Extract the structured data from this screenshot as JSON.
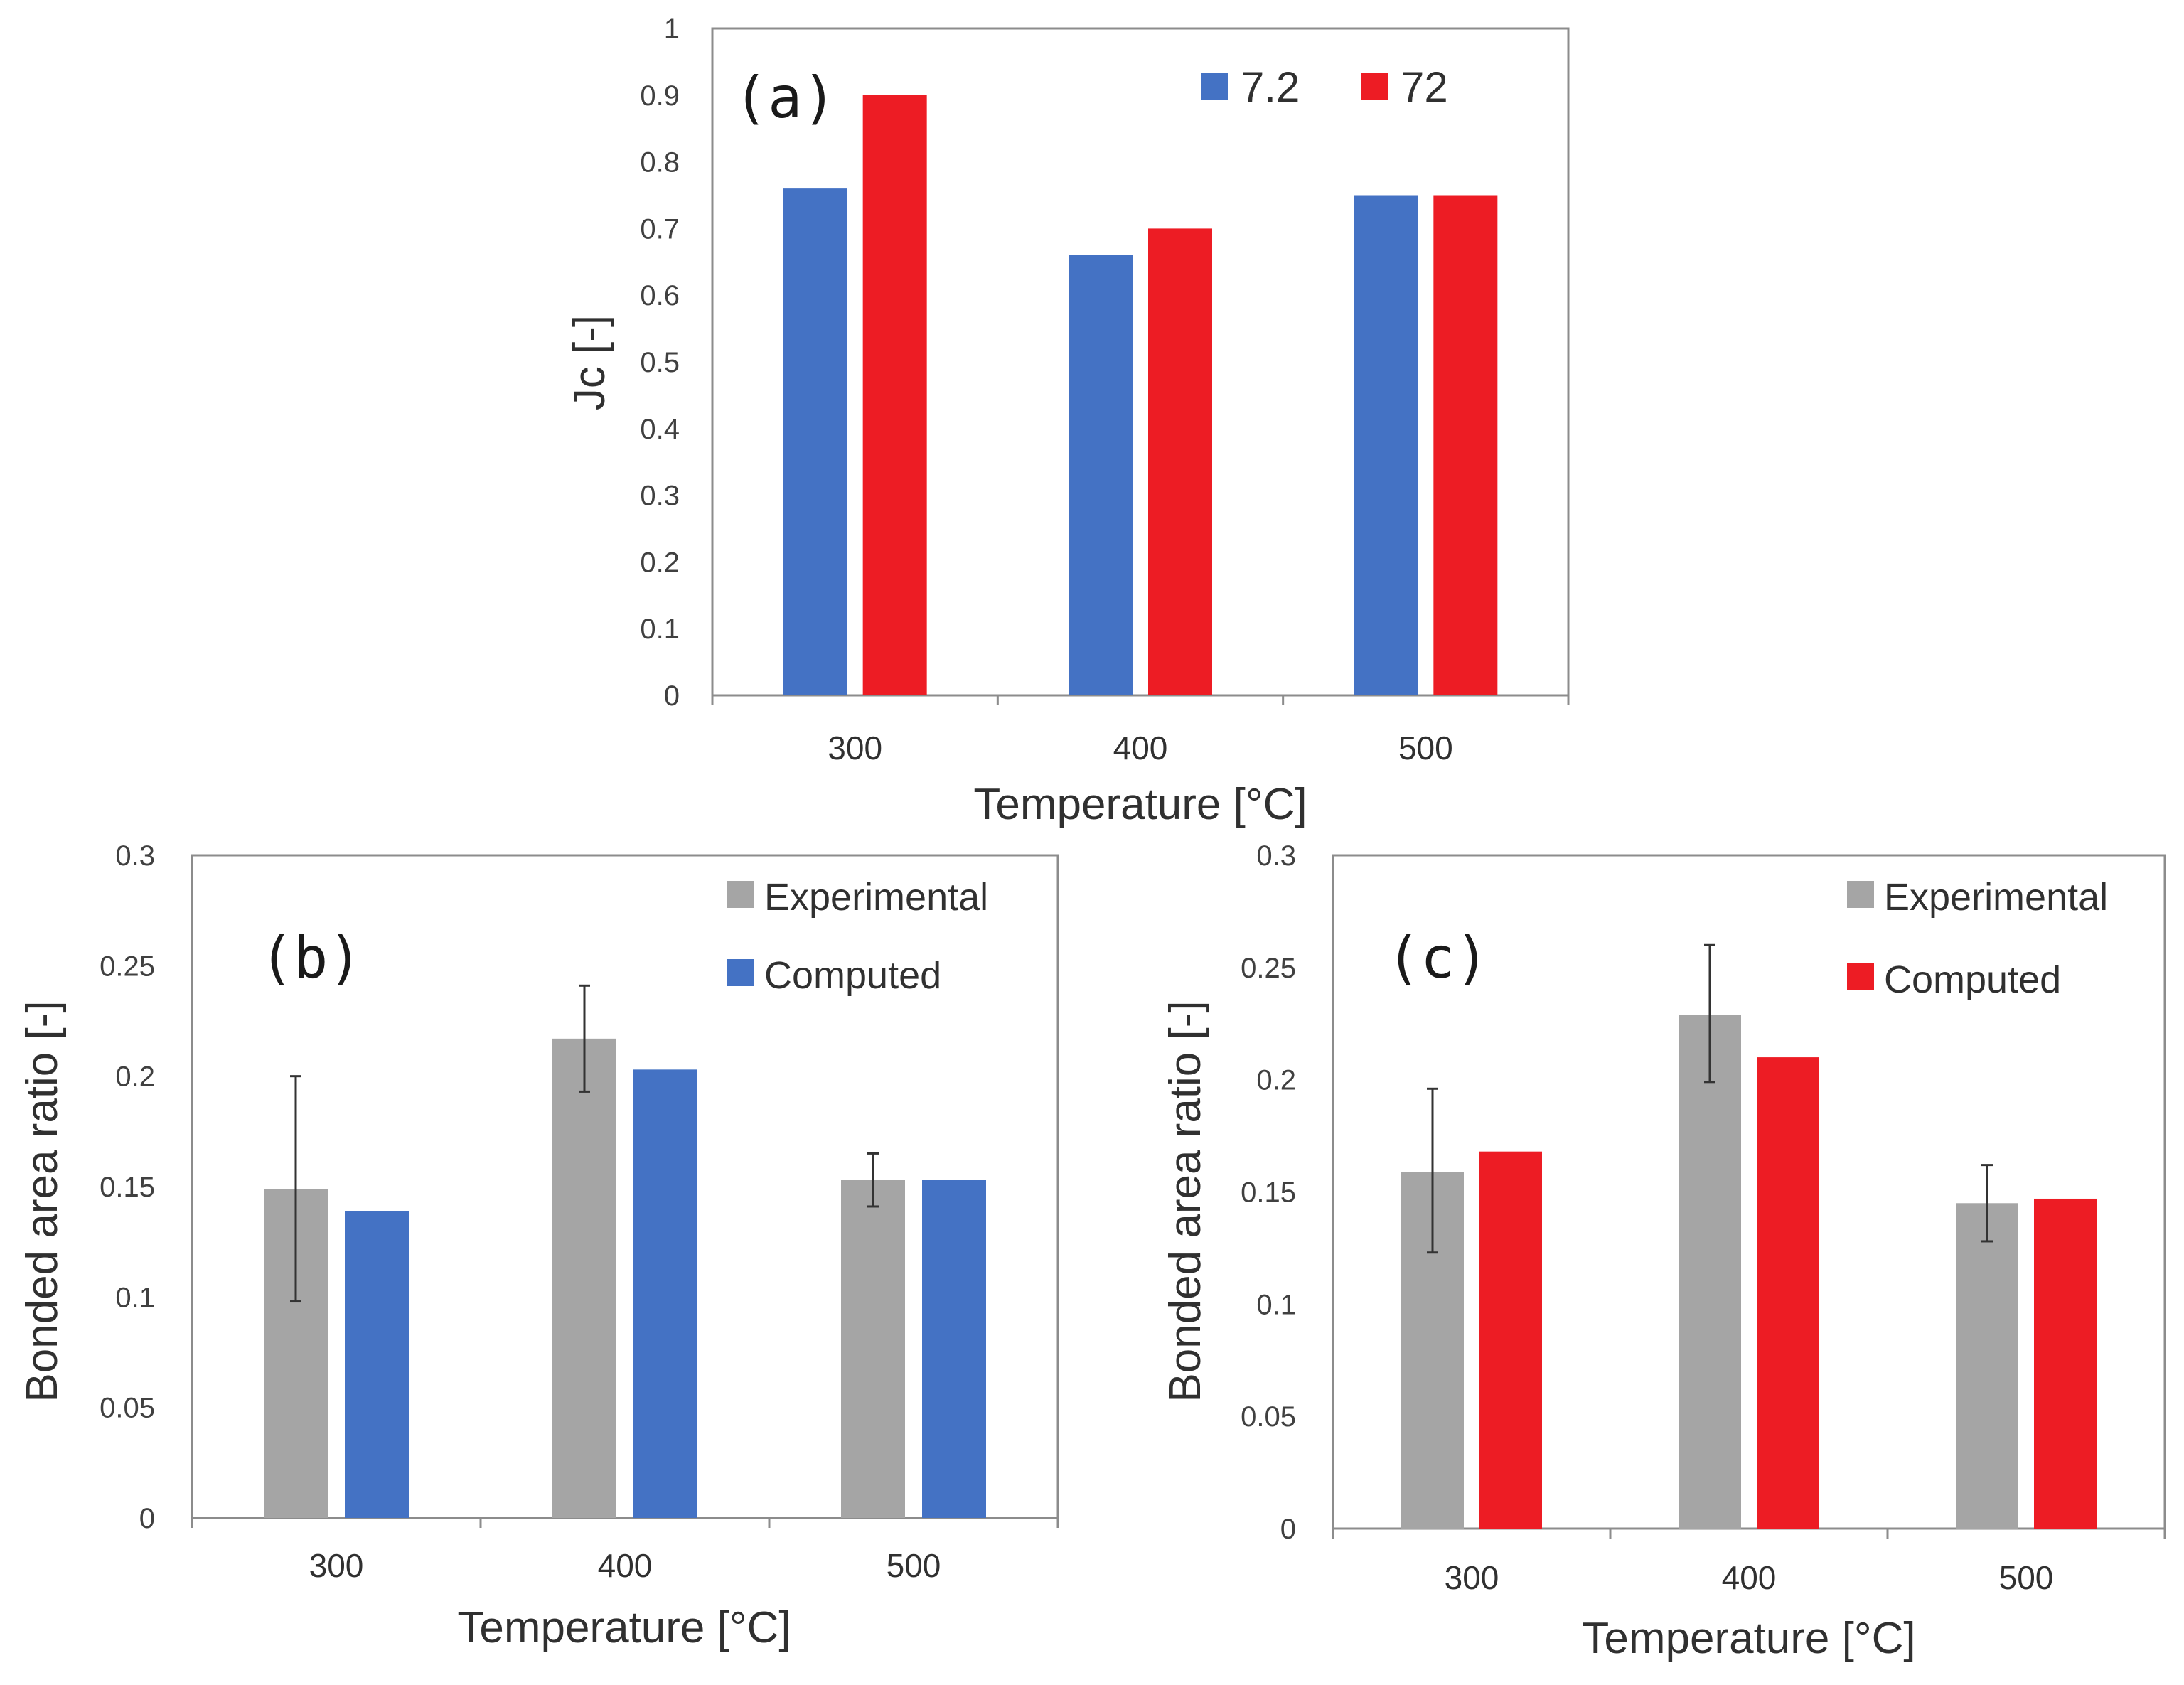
{
  "chart_data": [
    {
      "id": "a",
      "type": "bar",
      "panel_label": "(a)",
      "title": "",
      "categories": [
        "300",
        "400",
        "500"
      ],
      "series": [
        {
          "name": "7.2",
          "values": [
            0.76,
            0.66,
            0.75
          ]
        },
        {
          "name": "72",
          "values": [
            0.9,
            0.7,
            0.75
          ]
        }
      ],
      "xlabel": "Temperature [°C]",
      "ylabel": "Jc [-]",
      "ylim": [
        0,
        1
      ],
      "yticks": [
        "0",
        "0.1",
        "0.2",
        "0.3",
        "0.4",
        "0.5",
        "0.6",
        "0.7",
        "0.8",
        "0.9",
        "1"
      ],
      "legend_position": "top-right",
      "colors": [
        "#4472c4",
        "#ed1c24"
      ]
    },
    {
      "id": "b",
      "type": "bar",
      "panel_label": "(b)",
      "title": "",
      "categories": [
        "300",
        "400",
        "500"
      ],
      "series": [
        {
          "name": "Experimental",
          "values": [
            0.149,
            0.217,
            0.153
          ],
          "error_low": [
            0.098,
            0.193,
            0.141
          ],
          "error_high": [
            0.2,
            0.241,
            0.165
          ]
        },
        {
          "name": "Computed",
          "values": [
            0.139,
            0.203,
            0.153
          ]
        }
      ],
      "xlabel": "Temperature [°C]",
      "ylabel": "Bonded area ratio [-]",
      "ylim": [
        0,
        0.3
      ],
      "yticks": [
        "0",
        "0.05",
        "0.1",
        "0.15",
        "0.2",
        "0.25",
        "0.3"
      ],
      "legend_position": "top-right",
      "colors": [
        "#a5a5a5",
        "#4472c4"
      ]
    },
    {
      "id": "c",
      "type": "bar",
      "panel_label": "(c)",
      "title": "",
      "categories": [
        "300",
        "400",
        "500"
      ],
      "series": [
        {
          "name": "Experimental",
          "values": [
            0.159,
            0.229,
            0.145
          ],
          "error_low": [
            0.123,
            0.199,
            0.128
          ],
          "error_high": [
            0.196,
            0.26,
            0.162
          ]
        },
        {
          "name": "Computed",
          "values": [
            0.168,
            0.21,
            0.147
          ]
        }
      ],
      "xlabel": "Temperature [°C]",
      "ylabel": "Bonded area ratio [-]",
      "ylim": [
        0,
        0.3
      ],
      "yticks": [
        "0",
        "0.05",
        "0.1",
        "0.15",
        "0.2",
        "0.25",
        "0.3"
      ],
      "legend_position": "top-right",
      "colors": [
        "#a5a5a5",
        "#ed1c24"
      ]
    }
  ]
}
